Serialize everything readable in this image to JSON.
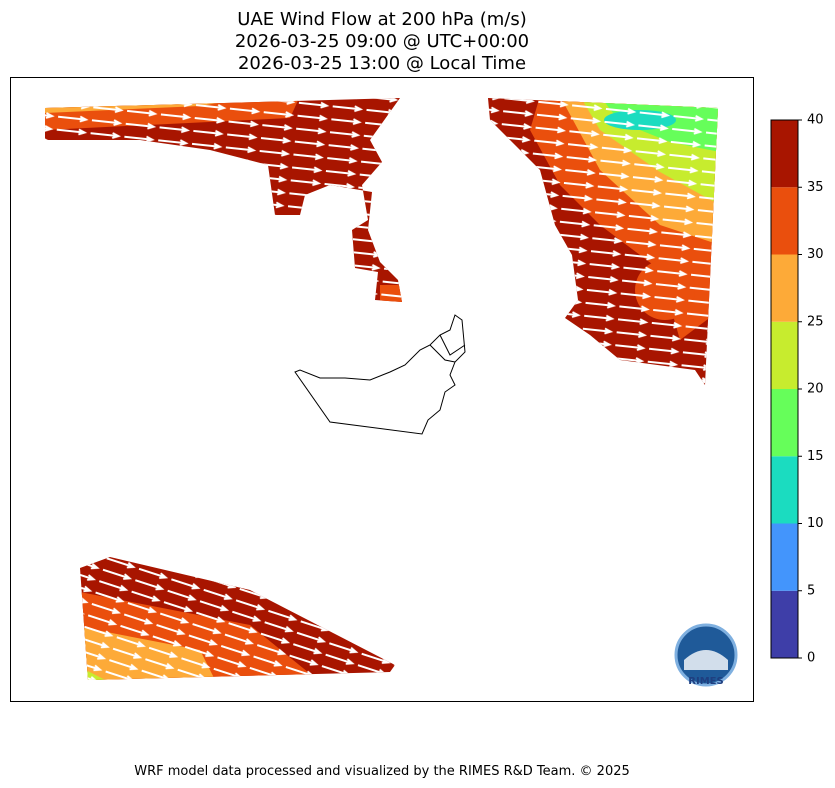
{
  "title_lines": [
    "UAE Wind Flow at 200 hPa (m/s)",
    "2026-03-25 09:00 @ UTC+00:00",
    "2026-03-25 13:00 @ Local Time"
  ],
  "colorbar": {
    "ticks": [
      0,
      5,
      10,
      15,
      20,
      25,
      30,
      35,
      40
    ],
    "colors": [
      "#3e3ea8",
      "#4395fc",
      "#1bdcc0",
      "#66fe5a",
      "#c7ec2e",
      "#fdaa38",
      "#ea4f0d",
      "#a81500"
    ]
  },
  "logo": {
    "text": "RIMES"
  },
  "footer": "WRF model data processed and visualized by the RIMES R&D Team. © 2025"
}
